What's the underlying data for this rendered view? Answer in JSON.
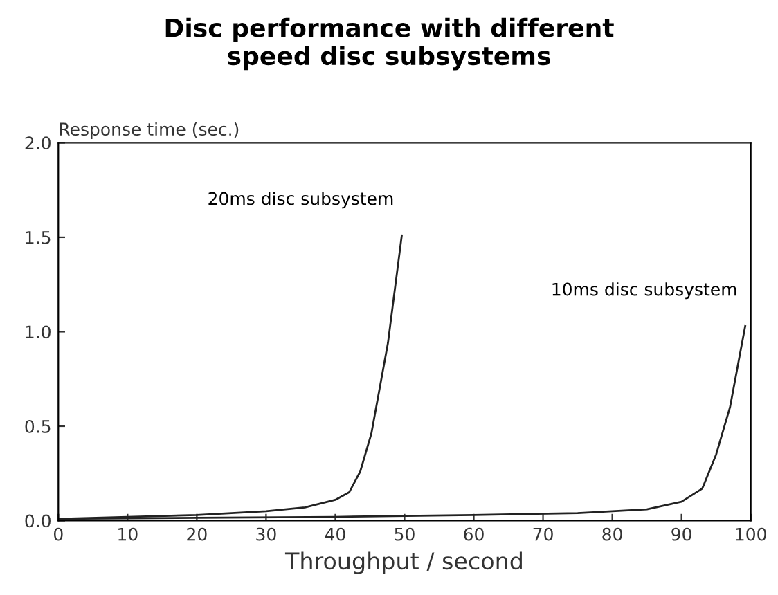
{
  "chart_data": {
    "type": "line",
    "title": "Disc performance with different\nspeed disc subsystems",
    "xlabel": "Throughput / second",
    "ylabel": "Response time (sec.)",
    "xlim": [
      0,
      100
    ],
    "xticks": [
      0,
      10,
      20,
      30,
      40,
      50,
      60,
      70,
      80,
      90,
      100
    ],
    "ylim": [
      0,
      2.0
    ],
    "yticks": [
      {
        "value": 0,
        "label": "0.0"
      },
      {
        "value": 0.5,
        "label": "0.5"
      },
      {
        "value": 1.0,
        "label": "1.0"
      },
      {
        "value": 1.5,
        "label": "1.5"
      },
      {
        "value": 2.0,
        "label": "2.0"
      }
    ],
    "grid": false,
    "legend": false,
    "marker": "none",
    "line_style": "solid",
    "series": [
      {
        "name": "20ms disc subsystem",
        "color": "#222222",
        "x": [
          0,
          10,
          20,
          30,
          35.6,
          40,
          42,
          43.6,
          45.2,
          47.6,
          49.6
        ],
        "values": [
          0.01,
          0.02,
          0.03,
          0.05,
          0.07,
          0.11,
          0.15,
          0.26,
          0.46,
          0.94,
          1.51
        ]
      },
      {
        "name": "10ms disc subsystem",
        "color": "#222222",
        "x": [
          0,
          20,
          40,
          60,
          75,
          85,
          90,
          93,
          95,
          97,
          99.2
        ],
        "values": [
          0.01,
          0.015,
          0.02,
          0.03,
          0.04,
          0.06,
          0.1,
          0.17,
          0.35,
          0.6,
          1.03
        ]
      }
    ]
  }
}
